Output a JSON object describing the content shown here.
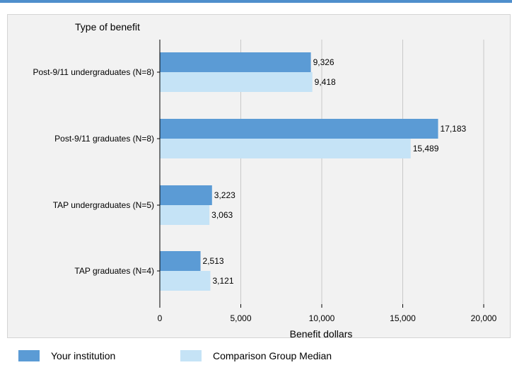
{
  "colors": {
    "top_rule": "#4f8fcc",
    "series_primary": "#5b9bd5",
    "series_comparison": "#c5e3f6",
    "grid": "#c8c8c8",
    "axis": "#000000"
  },
  "chart_data": {
    "type": "bar",
    "orientation": "horizontal",
    "title": "",
    "ylabel": "Type of benefit",
    "xlabel": "Benefit dollars",
    "categories": [
      "Post-9/11 undergraduates (N=8)",
      "Post-9/11 graduates (N=8)",
      "TAP undergraduates (N=5)",
      "TAP graduates (N=4)"
    ],
    "series": [
      {
        "name": "Your institution",
        "values": [
          9326,
          17183,
          3223,
          2513
        ],
        "labels": [
          "9,326",
          "17,183",
          "3,223",
          "2,513"
        ]
      },
      {
        "name": "Comparison Group Median",
        "values": [
          9418,
          15489,
          3063,
          3121
        ],
        "labels": [
          "9,418",
          "15,489",
          "3,063",
          "3,121"
        ]
      }
    ],
    "xlim": [
      0,
      20000
    ],
    "xticks": [
      0,
      5000,
      10000,
      15000,
      20000
    ],
    "xtick_labels": [
      "0",
      "5,000",
      "10,000",
      "15,000",
      "20,000"
    ],
    "grid": "vertical",
    "legend_position": "bottom"
  }
}
